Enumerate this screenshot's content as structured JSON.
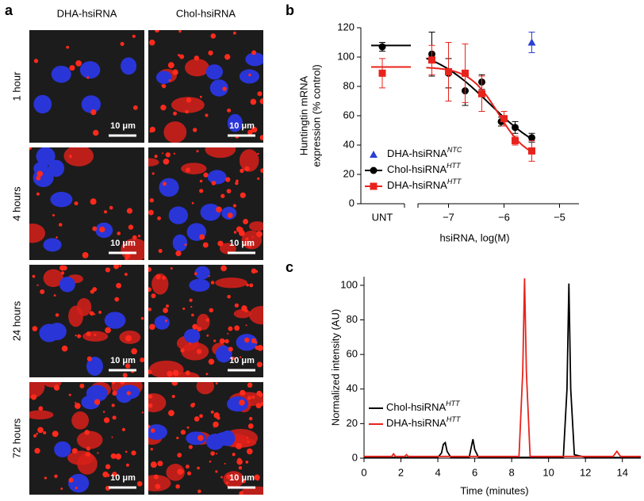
{
  "panel_a": {
    "label": "a",
    "columns": [
      "DHA-hsiRNA",
      "Chol-hsiRNA"
    ],
    "rows": [
      "1 hour",
      "4 hours",
      "24 hours",
      "72 hours"
    ],
    "scale_bar": "10 μm"
  },
  "chart_data": [
    {
      "type": "scatter",
      "panel_label": "b",
      "y_label": [
        "Huntingtin mRNA",
        "expression (% control)"
      ],
      "x_label": "hsiRNA, log(M)",
      "untreated_label": "UNT",
      "xlim": [
        -7.55,
        -4.65
      ],
      "xticks": [
        {
          "value": -7,
          "label": "−7"
        },
        {
          "value": -6,
          "label": "−6"
        },
        {
          "value": -5,
          "label": "−5"
        }
      ],
      "ylim": [
        0,
        120
      ],
      "yticks": [
        0,
        20,
        40,
        60,
        80,
        100,
        120
      ],
      "legend": "lower left",
      "series": [
        {
          "name": "DHA-hsiRNA",
          "name_sup": "NTC",
          "color": "#2b3fd6",
          "marker": "triangle",
          "fit": false,
          "x": [
            -5.5
          ],
          "values": [
            110
          ],
          "errors": [
            7
          ]
        },
        {
          "name": "Chol-hsiRNA",
          "name_sup": "HTT",
          "color": "#000000",
          "marker": "circle",
          "fit": true,
          "x": [
            -7.3,
            -7,
            -6.7,
            -6.4,
            -6.05,
            -5.8,
            -5.5
          ],
          "values": [
            102,
            89,
            77,
            83,
            56,
            52,
            45
          ],
          "errors": [
            15,
            10,
            10,
            5,
            3,
            4,
            3
          ],
          "untreated_value": 107,
          "untreated_error": 3
        },
        {
          "name": "DHA-hsiRNA",
          "name_sup": "HTT",
          "color": "#e8231c",
          "marker": "square",
          "fit": true,
          "x": [
            -7.3,
            -7,
            -6.7,
            -6.4,
            -6,
            -5.8,
            -5.5
          ],
          "values": [
            98,
            90,
            89,
            75,
            58,
            43,
            36
          ],
          "errors": [
            10,
            20,
            20,
            12,
            5,
            3,
            7
          ],
          "untreated_value": 89,
          "untreated_error": 10
        }
      ]
    },
    {
      "type": "line",
      "panel_label": "c",
      "x_label": "Time (minutes)",
      "y_label": "Normalized intensity (AU)",
      "xlim": [
        0,
        15
      ],
      "xticks": [
        0,
        2,
        4,
        6,
        8,
        10,
        12,
        14
      ],
      "ylim": [
        0,
        105
      ],
      "yticks": [
        0,
        20,
        40,
        60,
        80,
        100
      ],
      "legend": "center left",
      "series": [
        {
          "name": "Chol-hsiRNA",
          "name_sup": "HTT",
          "color": "#000000",
          "x": [
            0,
            4,
            4.2,
            4.3,
            4.4,
            4.5,
            4.7,
            5.7,
            5.9,
            6.0,
            6.2,
            10.8,
            11.0,
            11.1,
            11.2,
            11.4,
            11.8,
            12,
            15
          ],
          "values": [
            0.5,
            0.5,
            3,
            8,
            9,
            4,
            0.5,
            0.5,
            11,
            5,
            0.5,
            0.5,
            40,
            101,
            40,
            2,
            1,
            0.5,
            0.3
          ]
        },
        {
          "name": "DHA-hsiRNA",
          "name_sup": "HTT",
          "color": "#e8231c",
          "x": [
            0,
            1.5,
            1.6,
            1.7,
            2.2,
            2.3,
            2.4,
            8.4,
            8.6,
            8.7,
            8.8,
            9.0,
            13.5,
            13.7,
            13.9,
            15
          ],
          "values": [
            1,
            1,
            2.5,
            1,
            1,
            2,
            1,
            1,
            50,
            104,
            50,
            1,
            1,
            4,
            1,
            1
          ]
        }
      ]
    }
  ]
}
